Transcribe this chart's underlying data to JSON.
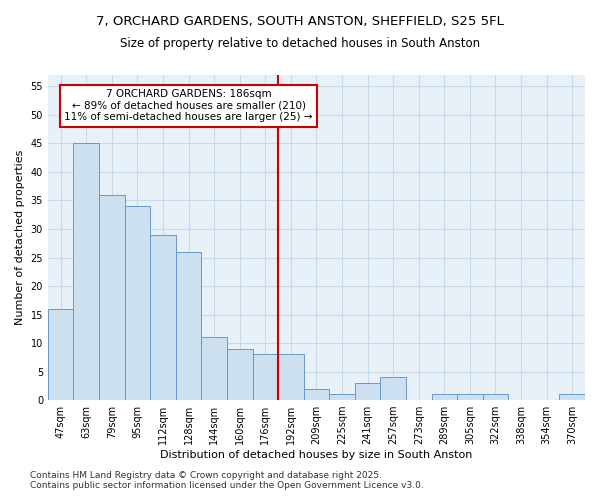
{
  "title_line1": "7, ORCHARD GARDENS, SOUTH ANSTON, SHEFFIELD, S25 5FL",
  "title_line2": "Size of property relative to detached houses in South Anston",
  "xlabel": "Distribution of detached houses by size in South Anston",
  "ylabel": "Number of detached properties",
  "bins": [
    "47sqm",
    "63sqm",
    "79sqm",
    "95sqm",
    "112sqm",
    "128sqm",
    "144sqm",
    "160sqm",
    "176sqm",
    "192sqm",
    "209sqm",
    "225sqm",
    "241sqm",
    "257sqm",
    "273sqm",
    "289sqm",
    "305sqm",
    "322sqm",
    "338sqm",
    "354sqm",
    "370sqm"
  ],
  "values": [
    16,
    45,
    36,
    34,
    29,
    26,
    11,
    9,
    8,
    8,
    2,
    1,
    3,
    4,
    0,
    1,
    1,
    1,
    0,
    0,
    1
  ],
  "bar_color": "#cce0f0",
  "bar_edge_color": "#6699cc",
  "grid_color": "#c8daea",
  "background_color": "#e8f0f8",
  "vline_x": 8.5,
  "vline_color": "#cc0000",
  "annotation_text": "7 ORCHARD GARDENS: 186sqm\n← 89% of detached houses are smaller (210)\n11% of semi-detached houses are larger (25) →",
  "annotation_box_color": "#cc0000",
  "ylim": [
    0,
    57
  ],
  "yticks": [
    0,
    5,
    10,
    15,
    20,
    25,
    30,
    35,
    40,
    45,
    50,
    55
  ],
  "footer": "Contains HM Land Registry data © Crown copyright and database right 2025.\nContains public sector information licensed under the Open Government Licence v3.0.",
  "title_fontsize": 9.5,
  "subtitle_fontsize": 8.5,
  "axis_label_fontsize": 8,
  "tick_fontsize": 7,
  "annotation_fontsize": 7.5,
  "footer_fontsize": 6.5
}
